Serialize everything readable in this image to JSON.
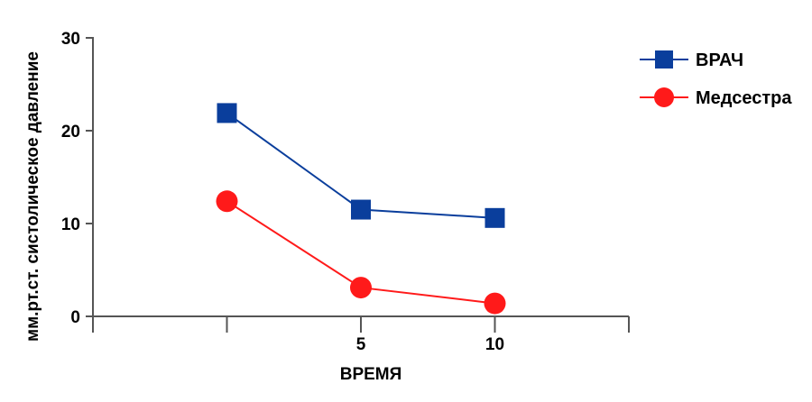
{
  "chart_data": {
    "type": "line",
    "title": "",
    "xlabel": "ВРЕМЯ",
    "ylabel": "мм.рт.ст. систолическое давление",
    "xlim": [
      -5,
      15
    ],
    "ylim": [
      0,
      30
    ],
    "x_ticks": [
      0,
      5,
      10,
      15
    ],
    "x_tick_labels": [
      "",
      "5",
      "10",
      ""
    ],
    "y_ticks": [
      0,
      10,
      20,
      30
    ],
    "y_tick_labels": [
      "0",
      "10",
      "20",
      "30"
    ],
    "grid": false,
    "legend_position": "top-right",
    "series": [
      {
        "name": "ВРАЧ",
        "color": "#0a3e9c",
        "marker": "square",
        "x": [
          0,
          5,
          10
        ],
        "y": [
          21.9,
          11.5,
          10.6
        ]
      },
      {
        "name": "Медсестра",
        "color": "#ff1a1a",
        "marker": "circle",
        "x": [
          0,
          5,
          10
        ],
        "y": [
          12.4,
          3.1,
          1.4
        ]
      }
    ]
  }
}
